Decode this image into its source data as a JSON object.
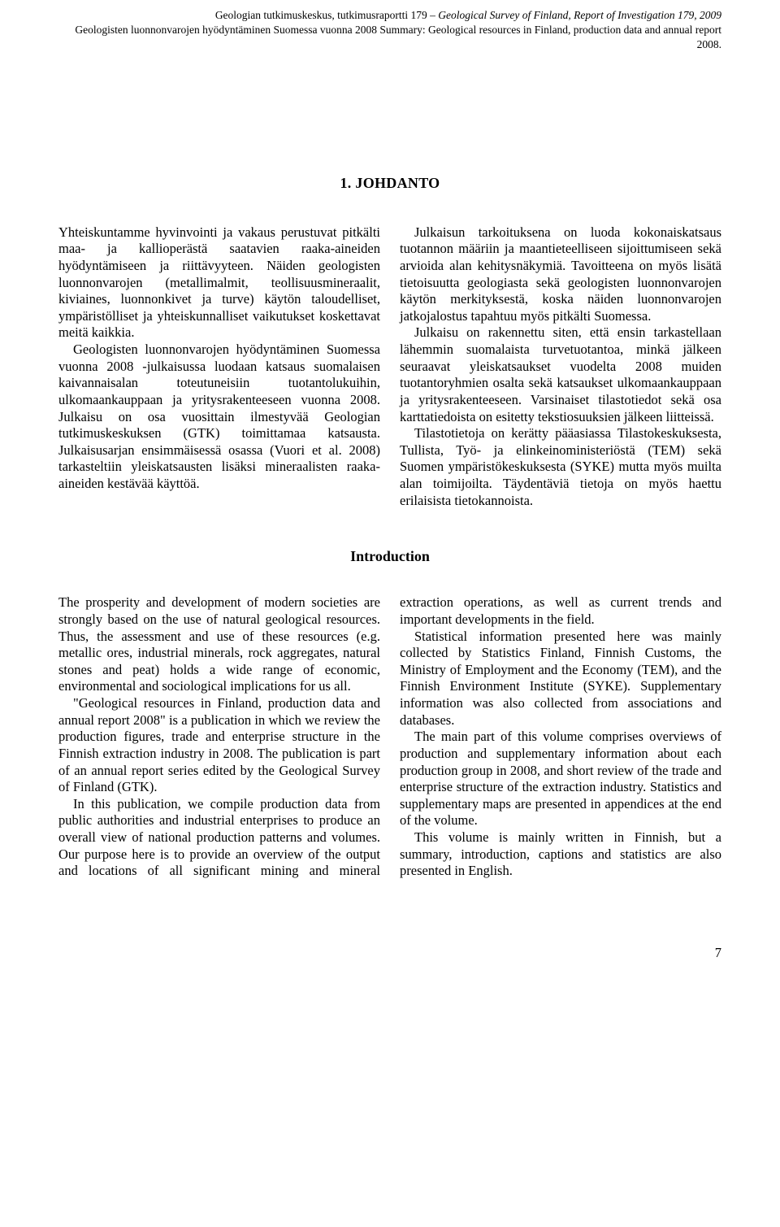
{
  "header": {
    "line1a": "Geologian tutkimuskeskus, tutkimusraportti 179 – ",
    "line1b": "Geological Survey of Finland, Report of Investigation 179, 2009",
    "line2": "Geologisten luonnonvarojen hyödyntäminen Suomessa vuonna 2008 Summary: Geological resources in Finland, production data and annual report 2008."
  },
  "chapter_title": "1. JOHDANTO",
  "fin_paras": [
    "Yhteiskuntamme hyvinvointi ja vakaus perustuvat pitkälti maa- ja kallioperästä saatavien raaka-aineiden hyödyntämiseen ja riittävyyteen. Näiden geologisten luonnonvarojen (metallimalmit, teollisuusmineraalit, kiviaines, luonnonkivet ja turve) käytön taloudelliset, ympäristölliset ja yhteiskunnalliset vaikutukset koskettavat meitä kaikkia.",
    "Geologisten luonnonvarojen hyödyntäminen Suomessa vuonna 2008 -julkaisussa luodaan katsaus suomalaisen kaivannaisalan toteutuneisiin tuotantolukuihin, ulkomaankauppaan ja yritysrakenteeseen vuonna 2008. Julkaisu on osa vuosittain ilmestyvää Geologian tutkimuskeskuksen (GTK) toimittamaa katsausta. Julkaisusarjan ensimmäisessä osassa (Vuori et al. 2008) tarkasteltiin yleiskatsausten lisäksi mineraalisten raaka-aineiden kestävää käyttöä.",
    "Julkaisun tarkoituksena on luoda kokonaiskatsaus tuotannon määriin ja maantieteelliseen sijoittumiseen sekä arvioida alan kehitysnäkymiä. Tavoitteena on myös lisätä tietoisuutta geologiasta sekä geologisten luonnonvarojen käytön merkityksestä, koska näiden luonnonvarojen jatkojalostus tapahtuu myös pitkälti Suomessa.",
    "Julkaisu on rakennettu siten, että ensin tarkastellaan lähemmin suomalaista turvetuotantoa, minkä jälkeen seuraavat yleiskatsaukset vuodelta 2008 muiden tuotantoryhmien osalta sekä katsaukset ulkomaankauppaan ja yritysrakenteeseen. Varsinaiset tilastotiedot sekä osa karttatiedoista on esitetty tekstiosuuksien jälkeen liitteissä.",
    "Tilastotietoja on kerätty pääasiassa Tilastokeskuksesta, Tullista, Työ- ja elinkeinoministeriöstä (TEM) sekä Suomen ympäristökeskuksesta (SYKE) mutta myös muilta alan toimijoilta. Täydentäviä tietoja on myös haettu erilaisista tietokannoista."
  ],
  "subhead": "Introduction",
  "eng_paras": [
    "The prosperity and development of modern societies are strongly based on the use of natural geological resources. Thus, the assessment and use of these resources (e.g. metallic ores, industrial minerals, rock aggregates, natural stones and peat) holds a wide range of economic, environmental and sociological implications for us all.",
    "\"Geological resources in Finland, production data and annual report 2008\" is a publication in which we review the production figures, trade and enterprise structure in the Finnish extraction industry in 2008. The publication is part of an annual report series edited by the Geological Survey of Finland (GTK).",
    "In this publication, we compile production data from public authorities and industrial enterprises to produce an overall view of national production patterns and volumes. Our purpose here is to provide an overview of the output and locations of all significant mining and mineral extraction operations, as well as current trends and important developments in the field.",
    "Statistical information presented here was mainly collected by Statistics Finland, Finnish Customs, the Ministry of Employment and the Economy (TEM), and the Finnish Environment Institute (SYKE). Supplementary information was also collected from associations and databases.",
    "The main part of this volume comprises overviews of production and supplementary information about each production group in 2008, and short review of the trade and enterprise structure of the extraction industry. Statistics and supplementary maps are presented in appendices at the end of the volume.",
    "This volume is mainly written in Finnish, but a summary, introduction, captions and statistics are also presented in English."
  ],
  "page_number": "7"
}
